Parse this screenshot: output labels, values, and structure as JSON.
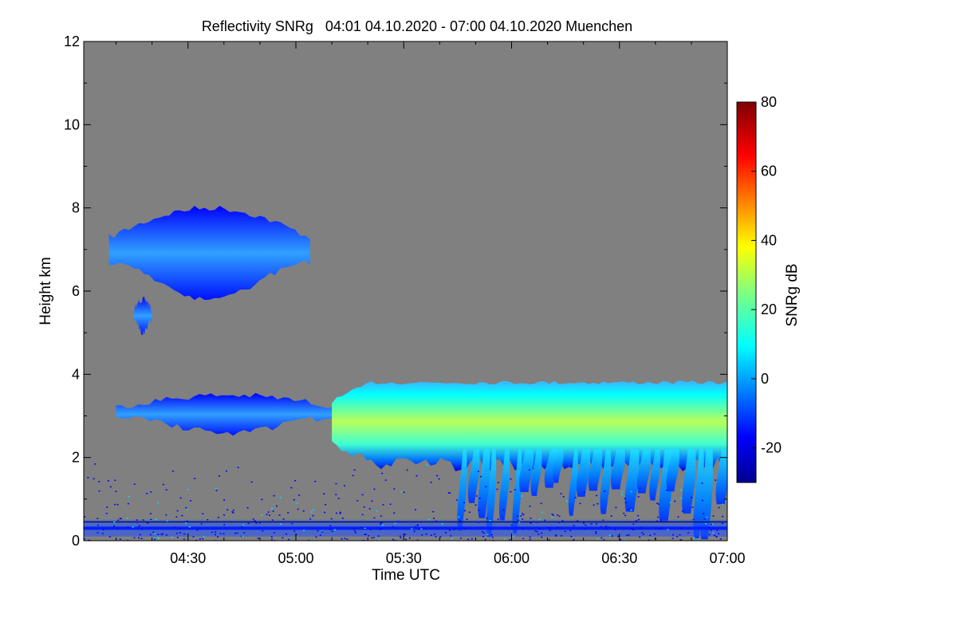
{
  "chart_data": {
    "type": "heatmap",
    "title": "Reflectivity SNRg   04:01 04.10.2020 - 07:00 04.10.2020 Muenchen",
    "xlabel": "Time UTC",
    "ylabel": "Height km",
    "xlim": [
      "04:01",
      "07:00"
    ],
    "ylim": [
      0,
      12
    ],
    "x_ticks": [
      "04:30",
      "05:00",
      "05:30",
      "06:00",
      "06:30",
      "07:00"
    ],
    "y_ticks": [
      "0",
      "2",
      "4",
      "6",
      "8",
      "10",
      "12"
    ],
    "background_color": "#808080",
    "colorbar": {
      "label": "SNRg dB",
      "range": [
        -30,
        80
      ],
      "ticks": [
        "-20",
        "0",
        "20",
        "40",
        "60",
        "80"
      ],
      "colormap": "jet"
    },
    "echo_regions": [
      {
        "t_start": "04:08",
        "t_end": "05:04",
        "h_bottom": 5.8,
        "h_top": 8.0,
        "snr_peak": 2
      },
      {
        "t_start": "04:15",
        "t_end": "04:20",
        "h_bottom": 5.0,
        "h_top": 5.8,
        "snr_peak": -5
      },
      {
        "t_start": "04:10",
        "t_end": "05:12",
        "h_bottom": 2.6,
        "h_top": 3.5,
        "snr_peak": -5
      },
      {
        "t_start": "05:10",
        "t_end": "07:00",
        "h_bottom": 1.5,
        "h_top": 3.9,
        "snr_peak": 30
      },
      {
        "t_start": "05:45",
        "t_end": "07:00",
        "h_bottom": 0.0,
        "h_top": 2.0,
        "snr_peak": 10
      }
    ],
    "surface_layer": {
      "h_bottom": 0.1,
      "h_top": 0.5,
      "snr_peak": -15
    }
  }
}
